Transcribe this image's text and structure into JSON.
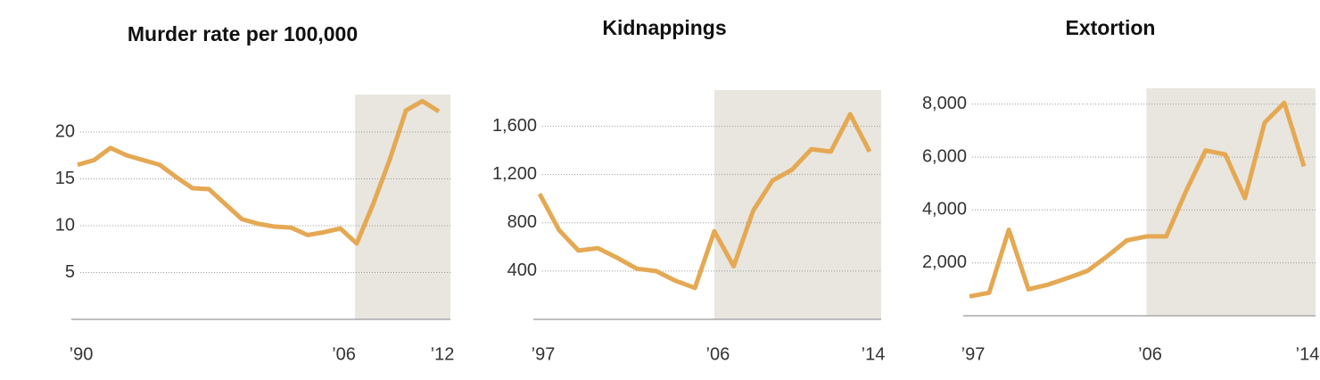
{
  "chart_data": [
    {
      "type": "line",
      "title": "Murder rate per 100,000",
      "x": [
        1990,
        1991,
        1992,
        1993,
        1994,
        1995,
        1996,
        1997,
        1998,
        1999,
        2000,
        2001,
        2002,
        2003,
        2004,
        2005,
        2006,
        2007,
        2008,
        2009,
        2010,
        2011,
        2012
      ],
      "values": [
        16.5,
        17,
        18.3,
        17.5,
        17,
        16.5,
        15.2,
        14,
        13.9,
        12.3,
        10.7,
        10.2,
        9.9,
        9.8,
        9,
        9.3,
        9.7,
        8.1,
        12.3,
        17,
        22.3,
        23.3,
        22.2
      ],
      "color": "#e5a853",
      "xlim": [
        1990,
        2012
      ],
      "ylim": [
        0,
        24
      ],
      "xticks": [
        {
          "value": 1990,
          "label": "’90"
        },
        {
          "value": 2006,
          "label": "’06"
        },
        {
          "value": 2012,
          "label": "’12"
        }
      ],
      "yticks": [
        5,
        10,
        15,
        20
      ],
      "grid": true,
      "highlight_from": 2006.9,
      "highlight_color": "#e8e6df"
    },
    {
      "type": "line",
      "title": "Kidnappings",
      "x": [
        1997,
        1998,
        1999,
        2000,
        2001,
        2002,
        2003,
        2004,
        2005,
        2006,
        2007,
        2008,
        2009,
        2010,
        2011,
        2012,
        2013,
        2014
      ],
      "values": [
        1040,
        740,
        570,
        590,
        510,
        420,
        400,
        320,
        260,
        730,
        440,
        900,
        1150,
        1240,
        1410,
        1390,
        1700,
        1390
      ],
      "color": "#e5a853",
      "xlim": [
        1997,
        2014
      ],
      "ylim": [
        0,
        1900
      ],
      "xticks": [
        {
          "value": 1997,
          "label": "’97"
        },
        {
          "value": 2006,
          "label": "’06"
        },
        {
          "value": 2014,
          "label": "’14"
        }
      ],
      "yticks": [
        400,
        800,
        {
          "value": 1200,
          "label": "1,200"
        },
        {
          "value": 1600,
          "label": "1,600"
        }
      ],
      "grid": true,
      "highlight_from": 2006,
      "highlight_color": "#e8e6df"
    },
    {
      "type": "line",
      "title": "Extortion",
      "x": [
        1997,
        1998,
        1999,
        2000,
        2001,
        2002,
        2003,
        2004,
        2005,
        2006,
        2007,
        2008,
        2009,
        2010,
        2011,
        2012,
        2013,
        2014
      ],
      "values": [
        730,
        870,
        3250,
        1000,
        1180,
        1430,
        1700,
        2250,
        2850,
        3000,
        3000,
        4700,
        6250,
        6100,
        4450,
        7300,
        8050,
        5650
      ],
      "color": "#e5a853",
      "xlim": [
        1997,
        2014
      ],
      "ylim": [
        0,
        8600
      ],
      "xticks": [
        {
          "value": 1997,
          "label": "’97"
        },
        {
          "value": 2006,
          "label": "’06"
        },
        {
          "value": 2014,
          "label": "’14"
        }
      ],
      "yticks": [
        {
          "value": 2000,
          "label": "2,000"
        },
        {
          "value": 4000,
          "label": "4,000"
        },
        {
          "value": 6000,
          "label": "6,000"
        },
        {
          "value": 8000,
          "label": "8,000"
        }
      ],
      "grid": true,
      "highlight_from": 2006,
      "highlight_color": "#e8e6df"
    }
  ]
}
